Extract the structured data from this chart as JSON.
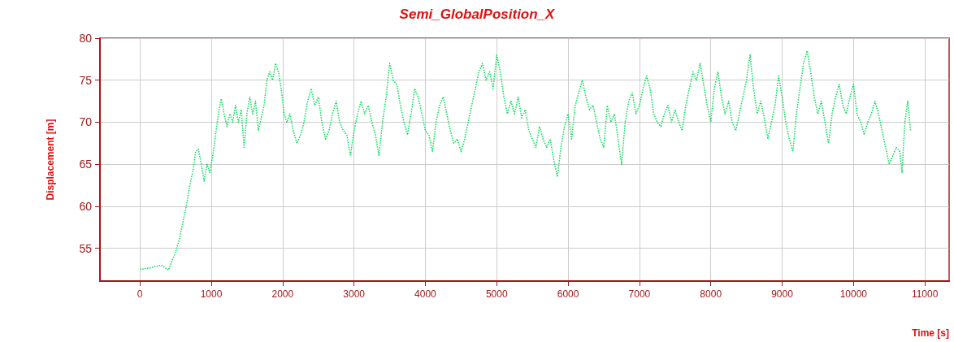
{
  "chart_data": {
    "type": "line",
    "title": "Semi_GlobalPosition_X",
    "xlabel": "Time [s]",
    "ylabel": "Displacement [m]",
    "xlim": [
      -560,
      11340
    ],
    "xticks": [
      0,
      1000,
      2000,
      3000,
      4000,
      5000,
      6000,
      7000,
      8000,
      9000,
      10000,
      11000
    ],
    "ylim": [
      51.1,
      80
    ],
    "yticks": [
      55,
      60,
      65,
      70,
      75,
      80
    ],
    "grid": true,
    "marker": "none",
    "line_style": "dotted",
    "series": [
      {
        "color": "#00dd55",
        "x": [
          0,
          100,
          200,
          300,
          350,
          400,
          450,
          500,
          550,
          600,
          650,
          700,
          750,
          780,
          820,
          860,
          900,
          940,
          980,
          1020,
          1060,
          1100,
          1140,
          1180,
          1220,
          1260,
          1300,
          1340,
          1380,
          1420,
          1460,
          1500,
          1540,
          1580,
          1620,
          1660,
          1700,
          1740,
          1780,
          1820,
          1860,
          1900,
          1940,
          1980,
          2020,
          2060,
          2100,
          2150,
          2200,
          2250,
          2300,
          2350,
          2400,
          2450,
          2500,
          2550,
          2600,
          2650,
          2700,
          2750,
          2800,
          2850,
          2900,
          2950,
          3000,
          3050,
          3100,
          3150,
          3200,
          3250,
          3300,
          3350,
          3400,
          3450,
          3500,
          3550,
          3600,
          3650,
          3700,
          3750,
          3800,
          3850,
          3900,
          3950,
          4000,
          4050,
          4100,
          4150,
          4200,
          4250,
          4300,
          4350,
          4400,
          4450,
          4500,
          4550,
          4600,
          4650,
          4700,
          4750,
          4800,
          4850,
          4900,
          4950,
          5000,
          5050,
          5100,
          5150,
          5200,
          5250,
          5300,
          5350,
          5400,
          5450,
          5500,
          5550,
          5600,
          5650,
          5700,
          5750,
          5800,
          5850,
          5900,
          5950,
          6000,
          6050,
          6100,
          6150,
          6200,
          6250,
          6300,
          6350,
          6400,
          6450,
          6500,
          6550,
          6600,
          6650,
          6700,
          6750,
          6800,
          6850,
          6900,
          6950,
          7000,
          7050,
          7100,
          7150,
          7200,
          7250,
          7300,
          7350,
          7400,
          7450,
          7500,
          7550,
          7600,
          7650,
          7700,
          7750,
          7800,
          7850,
          7900,
          7950,
          8000,
          8050,
          8100,
          8150,
          8200,
          8250,
          8300,
          8350,
          8400,
          8450,
          8500,
          8550,
          8600,
          8650,
          8700,
          8750,
          8800,
          8850,
          8900,
          8950,
          9000,
          9050,
          9100,
          9150,
          9200,
          9250,
          9300,
          9350,
          9400,
          9450,
          9500,
          9550,
          9600,
          9650,
          9700,
          9750,
          9800,
          9850,
          9900,
          9950,
          10000,
          10050,
          10100,
          10150,
          10200,
          10250,
          10300,
          10350,
          10400,
          10450,
          10500,
          10550,
          10600,
          10650,
          10680,
          10720,
          10760,
          10800
        ],
        "values": [
          52.5,
          52.6,
          52.8,
          53,
          52.7,
          52.4,
          53.5,
          54.5,
          56,
          58,
          60,
          62.5,
          64.5,
          66.5,
          66.8,
          65,
          63,
          65,
          64,
          66,
          68.5,
          71,
          72.8,
          71,
          69.5,
          71,
          70,
          72,
          70,
          71.5,
          67,
          71,
          73,
          71,
          72.5,
          69,
          70.5,
          72,
          75,
          76,
          75,
          77,
          76,
          74,
          71,
          70,
          71,
          69,
          67.5,
          68.5,
          70,
          72.5,
          74,
          72,
          73,
          70,
          68,
          69,
          71,
          72.5,
          70,
          69,
          68.5,
          66,
          69,
          71,
          72.5,
          71,
          72,
          70,
          68.5,
          66,
          70,
          73,
          77,
          75,
          74.5,
          72,
          70,
          68.5,
          71,
          74,
          73,
          71,
          69,
          68.5,
          66.5,
          70,
          72,
          73,
          71,
          69,
          67.5,
          68,
          66.5,
          68,
          70,
          72,
          74,
          76,
          77,
          75,
          76,
          74,
          78,
          76,
          73,
          71,
          72.5,
          71,
          73,
          70.5,
          71.5,
          69,
          68,
          67,
          69.5,
          68,
          67,
          68,
          65.5,
          63.5,
          67,
          69.5,
          71,
          68,
          72,
          73.5,
          75,
          73,
          71.5,
          72,
          70,
          68,
          67,
          72,
          70,
          71,
          68,
          65,
          70,
          72.5,
          73.5,
          71,
          72,
          74,
          75.5,
          74,
          71,
          70,
          69.5,
          71,
          72,
          70,
          71.5,
          70,
          69,
          72,
          74,
          76,
          75,
          77,
          74.5,
          72,
          70,
          74,
          76,
          73,
          71,
          72.5,
          70,
          69,
          71,
          73,
          75,
          78,
          74,
          71,
          72.5,
          70.5,
          68,
          70,
          72,
          75.5,
          73,
          70,
          68,
          66.5,
          71,
          74,
          77,
          78.5,
          76,
          73,
          71,
          72.5,
          70,
          67.5,
          71,
          73,
          74.5,
          72,
          71,
          73,
          74.5,
          71,
          70,
          68.5,
          70,
          71,
          72.5,
          71,
          69,
          67,
          65,
          66,
          67,
          66.5,
          64,
          70,
          72.5,
          69
        ]
      }
    ]
  }
}
